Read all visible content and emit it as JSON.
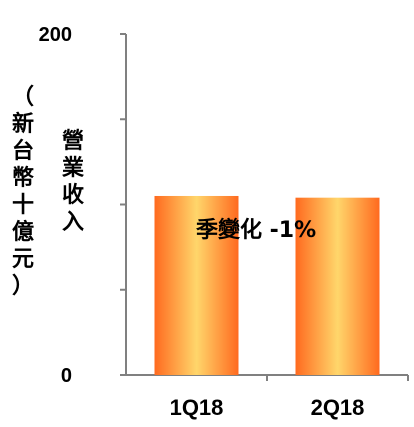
{
  "chart_data": {
    "type": "bar",
    "categories": [
      "1Q18",
      "2Q18"
    ],
    "values": [
      105,
      104
    ],
    "ylabel": "營業收入",
    "ylabel_unit": "（新台幣十億元）",
    "ylim": [
      0,
      200
    ],
    "ytick_labels": [
      "0",
      "200"
    ],
    "annotation": "季變化 -1%",
    "grid": false,
    "bar_colors": {
      "edge": "#ff6a1f",
      "center": "#ffd66b"
    },
    "axis_color": "#808080"
  }
}
